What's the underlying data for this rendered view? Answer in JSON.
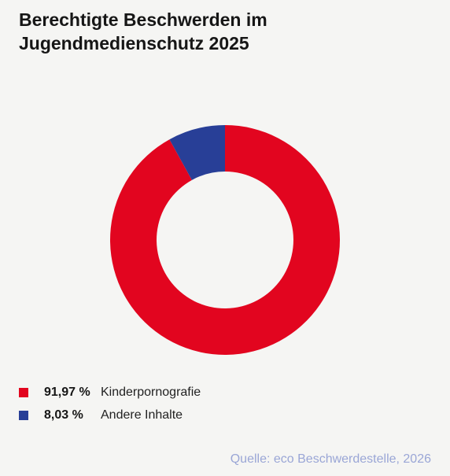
{
  "title": {
    "line1": "Berechtigte Beschwerden im",
    "line2": "Jugendmedienschutz 2025"
  },
  "legend": [
    {
      "pct_label": "91,97 %",
      "label": "Kinderpornografie",
      "color": "#e2051f"
    },
    {
      "pct_label": "8,03 %",
      "label": "Andere Inhalte",
      "color": "#283f97"
    }
  ],
  "source": "Quelle: eco Beschwerdestelle, 2026",
  "chart_data": {
    "type": "pie",
    "variant": "donut",
    "title": "Berechtigte Beschwerden im Jugendmedienschutz 2025",
    "categories": [
      "Kinderpornografie",
      "Andere Inhalte"
    ],
    "values": [
      91.97,
      8.03
    ],
    "unit": "%",
    "colors": [
      "#e2051f",
      "#283f97"
    ],
    "legend_position": "bottom-left"
  }
}
